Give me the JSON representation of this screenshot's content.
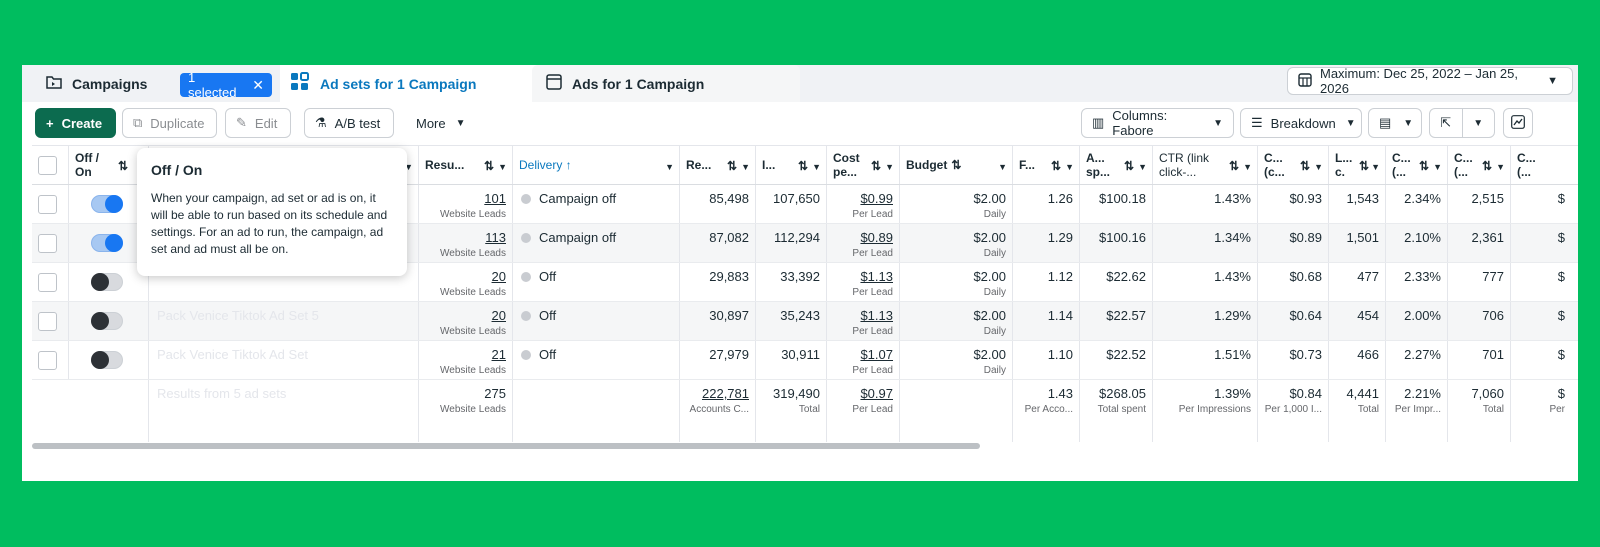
{
  "tabs": {
    "campaigns": "Campaigns",
    "selected_badge": "1 selected",
    "adsets": "Ad sets for 1 Campaign",
    "ads": "Ads for 1 Campaign"
  },
  "date_range": "Maximum: Dec 25, 2022 – Jan 25, 2026",
  "toolbar": {
    "create": "Create",
    "duplicate": "Duplicate",
    "edit": "Edit",
    "ab_test": "A/B test",
    "more": "More",
    "columns": "Columns: Fabore",
    "breakdown": "Breakdown"
  },
  "headers": {
    "onoff": "Off / On",
    "results": "Resu...",
    "delivery": "Delivery ↑",
    "reach": "Re...",
    "impressions": "I...",
    "cost": "Cost pe...",
    "budget": "Budget",
    "frequency": "F...",
    "amount_spent": "A... sp...",
    "ctr": "CTR (link click-...",
    "cpc": "C... (c...",
    "link_clicks": "L... c.",
    "c1": "C... (...",
    "c2": "C... (...",
    "c3": "C... (..."
  },
  "tooltip": {
    "title": "Off / On",
    "body": "When your campaign, ad set or ad is on, it will be able to run based on its schedule and settings. For an ad to run, the campaign, ad set and ad must all be on."
  },
  "rows": [
    {
      "toggle": "on",
      "name": "",
      "results": "101",
      "results_sub": "Website Leads",
      "delivery": "Campaign off",
      "reach": "85,498",
      "impressions": "107,650",
      "cost": "$0.99",
      "cost_sub": "Per Lead",
      "budget": "$2.00",
      "budget_sub": "Daily",
      "frequency": "1.26",
      "spent": "$100.18",
      "ctr": "1.43%",
      "cpc": "$0.93",
      "link_clicks": "1,543",
      "c1": "2.34%",
      "c2": "2,515",
      "c3": "$"
    },
    {
      "toggle": "on",
      "name": "",
      "results": "113",
      "results_sub": "Website Leads",
      "delivery": "Campaign off",
      "reach": "87,082",
      "impressions": "112,294",
      "cost": "$0.89",
      "cost_sub": "Per Lead",
      "budget": "$2.00",
      "budget_sub": "Daily",
      "frequency": "1.29",
      "spent": "$100.16",
      "ctr": "1.34%",
      "cpc": "$0.89",
      "link_clicks": "1,501",
      "c1": "2.10%",
      "c2": "2,361",
      "c3": "$"
    },
    {
      "toggle": "off",
      "name": "",
      "results": "20",
      "results_sub": "Website Leads",
      "delivery": "Off",
      "reach": "29,883",
      "impressions": "33,392",
      "cost": "$1.13",
      "cost_sub": "Per Lead",
      "budget": "$2.00",
      "budget_sub": "Daily",
      "frequency": "1.12",
      "spent": "$22.62",
      "ctr": "1.43%",
      "cpc": "$0.68",
      "link_clicks": "477",
      "c1": "2.33%",
      "c2": "777",
      "c3": "$"
    },
    {
      "toggle": "off",
      "name": "Pack Venice Tiktok Ad Set 5",
      "results": "20",
      "results_sub": "Website Leads",
      "delivery": "Off",
      "reach": "30,897",
      "impressions": "35,243",
      "cost": "$1.13",
      "cost_sub": "Per Lead",
      "budget": "$2.00",
      "budget_sub": "Daily",
      "frequency": "1.14",
      "spent": "$22.57",
      "ctr": "1.29%",
      "cpc": "$0.64",
      "link_clicks": "454",
      "c1": "2.00%",
      "c2": "706",
      "c3": "$"
    },
    {
      "toggle": "off",
      "name": "Pack Venice Tiktok Ad Set",
      "results": "21",
      "results_sub": "Website Leads",
      "delivery": "Off",
      "reach": "27,979",
      "impressions": "30,911",
      "cost": "$1.07",
      "cost_sub": "Per Lead",
      "budget": "$2.00",
      "budget_sub": "Daily",
      "frequency": "1.10",
      "spent": "$22.52",
      "ctr": "1.51%",
      "cpc": "$0.73",
      "link_clicks": "466",
      "c1": "2.27%",
      "c2": "701",
      "c3": "$"
    }
  ],
  "totals": {
    "label": "Results from 5 ad sets",
    "results": "275",
    "results_sub": "Website Leads",
    "reach": "222,781",
    "reach_sub": "Accounts C...",
    "impressions": "319,490",
    "impressions_sub": "Total",
    "cost": "$0.97",
    "cost_sub": "Per Lead",
    "frequency": "1.43",
    "frequency_sub": "Per Acco...",
    "spent": "$268.05",
    "spent_sub": "Total spent",
    "ctr": "1.39%",
    "ctr_sub": "Per Impressions",
    "cpc": "$0.84",
    "cpc_sub": "Per 1,000 I...",
    "link_clicks": "4,441",
    "link_clicks_sub": "Total",
    "c1": "2.21%",
    "c1_sub": "Per Impr...",
    "c2": "7,060",
    "c2_sub": "Total",
    "c3": "$",
    "c3_sub": "Per"
  },
  "colors": {
    "background": "#00bd5f",
    "primary_button": "#0c6b4f",
    "active_tab": "#0a78be",
    "badge": "#1877f2"
  }
}
